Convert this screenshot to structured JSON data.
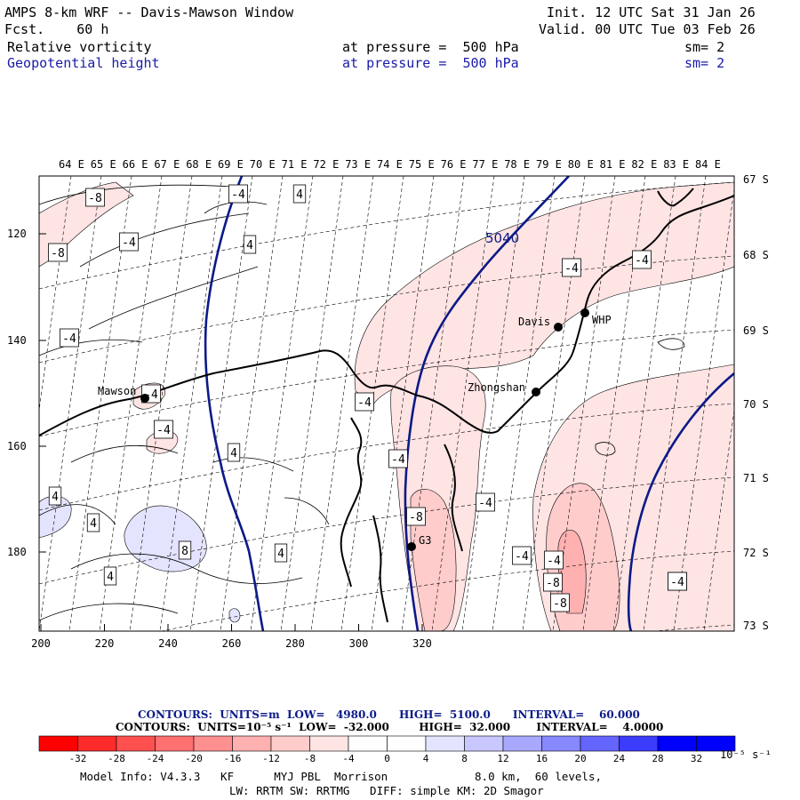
{
  "header": {
    "title": "AMPS 8-km WRF -- Davis-Mawson Window",
    "fcst": "Fcst.    60 h",
    "init": "Init. 12 UTC Sat 31 Jan 26",
    "valid": "Valid. 00 UTC Tue 03 Feb 26",
    "field1": {
      "name": "Relative vorticity",
      "level": "at pressure =  500 hPa",
      "sm": "sm= 2"
    },
    "field2": {
      "name": "Geopotential height",
      "level": "at pressure =  500 hPa",
      "sm": "sm= 2"
    }
  },
  "map": {
    "lon_labels": [
      "64 E",
      "65 E",
      "66 E",
      "67 E",
      "68 E",
      "69 E",
      "70 E",
      "71 E",
      "72 E",
      "73 E",
      "74 E",
      "75 E",
      "76 E",
      "77 E",
      "78 E",
      "79 E",
      "80 E",
      "81 E",
      "82 E",
      "83 E",
      "84 E"
    ],
    "lat_labels": [
      "67 S",
      "68 S",
      "69 S",
      "70 S",
      "71 S",
      "72 S",
      "73 S"
    ],
    "y_ticks": [
      "120",
      "140",
      "160",
      "180"
    ],
    "x_ticks": [
      "200",
      "220",
      "240",
      "260",
      "280",
      "300",
      "320"
    ],
    "stations": [
      "Mawson",
      "Davis",
      "WHP",
      "Zhongshan",
      "G3"
    ],
    "height_contour_label": "5040",
    "vort_labels": [
      "-8",
      "-8",
      "-4",
      "-4",
      "-4",
      "-4",
      "-4",
      "4",
      "4",
      "4",
      "4",
      "4",
      "4",
      "8",
      "-4",
      "-4",
      "-4",
      "-4",
      "-4",
      "-4",
      "-4",
      "-8",
      "-8",
      "-8",
      "-4",
      "-4",
      "4"
    ],
    "colors": {
      "height": "#0c1a88",
      "coast": "#000000",
      "grid": "#000000"
    }
  },
  "footer": {
    "contours1": "CONTOURS:  UNITS=m  LOW=   4980.0      HIGH=  5100.0      INTERVAL=    60.000",
    "contours2": "CONTOURS:  UNITS=10⁻⁵ s⁻¹  LOW=  -32.000        HIGH=  32.000       INTERVAL=    4.0000",
    "colorbar_labels": [
      "-32",
      "-28",
      "-24",
      "-20",
      "-16",
      "-12",
      "-8",
      "-4",
      "0",
      "4",
      "8",
      "12",
      "16",
      "20",
      "24",
      "28",
      "32"
    ],
    "colorbar_unit": "10⁻⁵ s⁻¹",
    "colorbar_colors": [
      "#ff0000",
      "#ff2a2a",
      "#ff5050",
      "#ff7070",
      "#ff9090",
      "#ffb0b0",
      "#ffcccc",
      "#ffe4e4",
      "#ffffff",
      "#ffffff",
      "#e4e4ff",
      "#c8c8ff",
      "#a8a8ff",
      "#8888ff",
      "#6464ff",
      "#3c3cff",
      "#0000ff",
      "#0000ff"
    ],
    "model_info1": "Model Info: V4.3.3   KF      MYJ PBL  Morrison             8.0 km,  60 levels,",
    "model_info2": "LW: RRTM SW: RRTMG   DIFF: simple KM: 2D Smagor"
  }
}
